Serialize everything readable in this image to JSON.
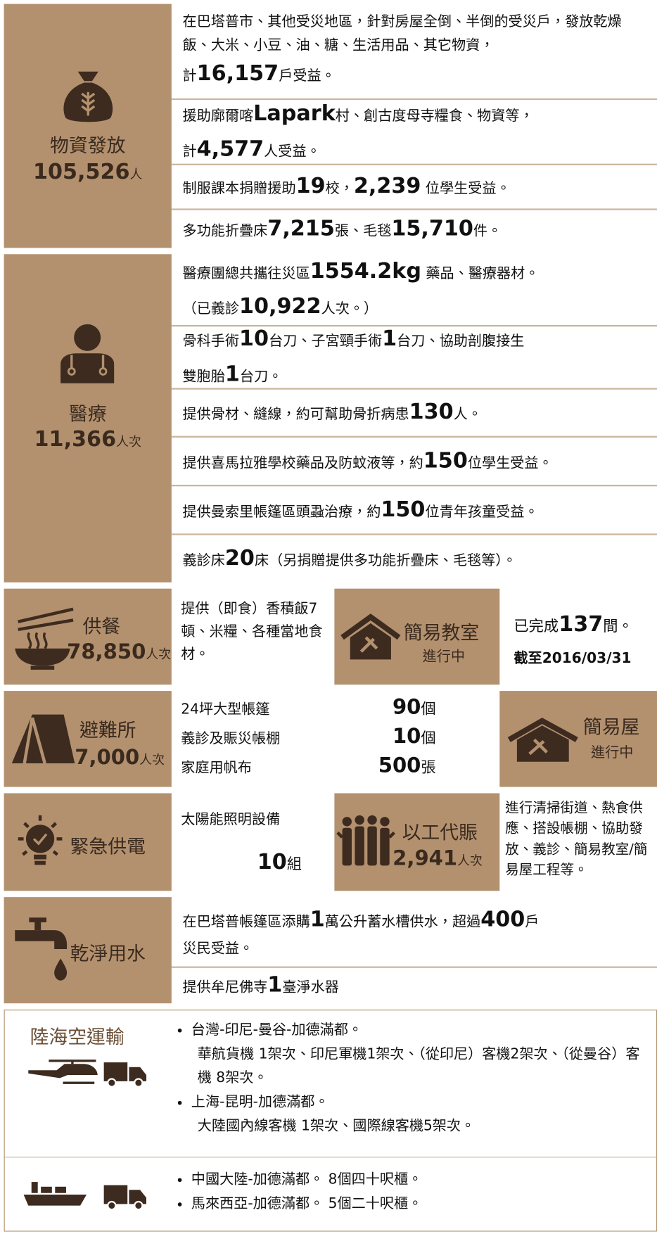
{
  "supplies": {
    "title": "物資發放",
    "total": "105,526",
    "unit": "人",
    "items": [
      [
        "在巴塔普市、其他受災地區，針對房屋全倒、半倒的受災戶，發放乾燥飯、大米、小豆、油、糖、生活用品、其它物資，\n計",
        "16,157",
        "戶受益。"
      ],
      [
        "援助廓爾喀",
        "Lapark",
        "村、創古度母寺糧食、物資等，\n計",
        "4,577",
        "人受益。"
      ],
      [
        "制服課本捐贈援助",
        "19",
        "校，",
        "2,239",
        " 位學生受益。"
      ],
      [
        " 多功能折疊床",
        "7,215",
        "張、毛毯",
        "15,710",
        "件。"
      ]
    ]
  },
  "medical": {
    "title": "醫療",
    "total": "11,366",
    "unit": "人次",
    "items": [
      [
        "醫療團總共攜往災區",
        "1554.2kg",
        " 藥品、醫療器材。\n（已義診",
        "10,922",
        "人次。）"
      ],
      [
        "骨科手術",
        "10",
        "台刀、子宮頸手術",
        "1",
        "台刀、協助剖腹接生\n雙胞胎",
        "1",
        "台刀。"
      ],
      [
        "提供骨材、縫線，約可幫助骨折病患",
        "130",
        "人。"
      ],
      [
        "提供喜馬拉雅學校藥品及防蚊液等，約",
        "150",
        "位學生受益。"
      ],
      [
        "提供曼索里帳篷區頭蝨治療，約",
        "150",
        "位青年孩童受益。"
      ],
      [
        "義診床",
        "20",
        "床（另捐贈提供多功能折疊床、毛毯等）。"
      ]
    ]
  },
  "meals": {
    "title": "供餐",
    "total": "78,850",
    "unit": "人次",
    "text": "提供（即食）香積飯7頓、米糧、各種當地食材。"
  },
  "classroom": {
    "title": "簡易教室",
    "status": "進行中",
    "prefix": "已完成",
    "count": "137",
    "suffix": "間。",
    "date": "截至2016/03/31"
  },
  "shelter": {
    "title": "避難所",
    "total": "7,000",
    "unit": "人次",
    "rows": [
      {
        "item": "24坪大型帳篷",
        "count": "90",
        "unit": "個"
      },
      {
        "item": "義診及賑災帳棚",
        "count": "10",
        "unit": "個"
      },
      {
        "item": "家庭用帆布",
        "count": "500",
        "unit": "張"
      }
    ]
  },
  "house": {
    "title": "簡易屋",
    "status": "進行中"
  },
  "power": {
    "title": "緊急供電",
    "item": "太陽能照明設備",
    "count": "10",
    "unit": "組"
  },
  "work": {
    "title": "以工代賑",
    "total": "2,941",
    "unit": "人次",
    "text": "進行清掃街道、熱食供應、搭設帳棚、協助發放、義診、簡易教室/簡易屋工程等。"
  },
  "water": {
    "title": "乾淨用水",
    "items": [
      [
        "在巴塔普帳篷區添購",
        "1",
        "萬公升蓄水槽供水，超過",
        "400",
        "戶\n災民受益。"
      ],
      [
        "提供牟尼佛寺",
        "1",
        "臺淨水器"
      ]
    ]
  },
  "transport": {
    "title": "陸海空運輸",
    "air": [
      {
        "route": "台灣-印尼-曼谷-加德滿都。",
        "detail": "華航貨機 1架次、印尼軍機1架次、（從印尼）客機2架次、（從曼谷）客機 8架次。"
      },
      {
        "route": "上海-昆明-加德滿都。",
        "detail": "大陸國內線客機 1架次、國際線客機5架次。"
      }
    ],
    "sea": [
      "中國大陸-加德滿都。 8個四十呎櫃。",
      "馬來西亞-加德滿都。 5個二十呎櫃。"
    ]
  }
}
